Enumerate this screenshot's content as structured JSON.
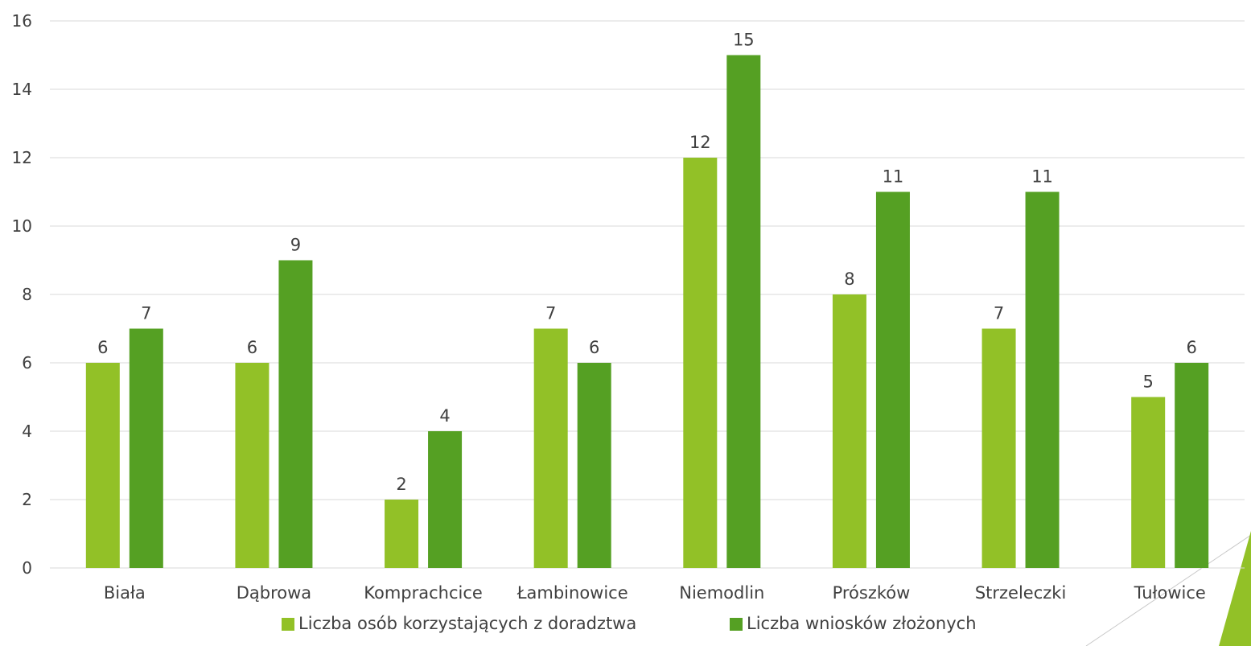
{
  "chart_data": {
    "type": "bar",
    "categories": [
      "Biała",
      "Dąbrowa",
      "Komprachcice",
      "Łambinowice",
      "Niemodlin",
      "Prószków",
      "Strzeleczki",
      "Tułowice"
    ],
    "series": [
      {
        "name": "Liczba osób korzystających z doradztwa",
        "values": [
          6,
          6,
          2,
          7,
          12,
          8,
          7,
          5
        ],
        "color": "#92c127"
      },
      {
        "name": "Liczba wniosków złożonych",
        "values": [
          7,
          9,
          4,
          6,
          15,
          11,
          11,
          6
        ],
        "color": "#55a023"
      }
    ],
    "ylim": [
      0,
      16
    ],
    "yticks": [
      0,
      2,
      4,
      6,
      8,
      10,
      12,
      14,
      16
    ],
    "grid": true,
    "legend": "bottom",
    "title": "",
    "xlabel": "",
    "ylabel": ""
  },
  "decoration": {
    "corner_color": "#92c127",
    "corner_line_color": "#c8c8c8"
  }
}
